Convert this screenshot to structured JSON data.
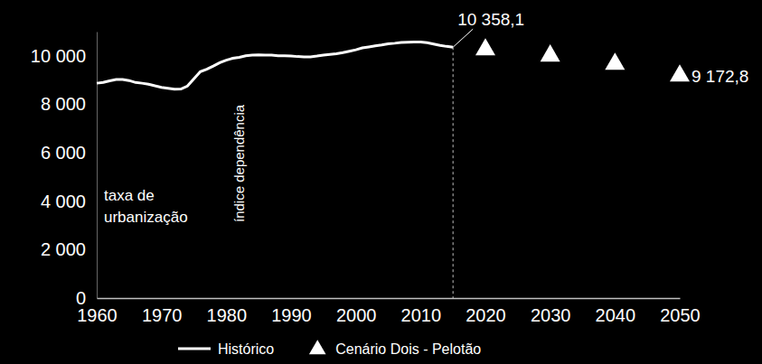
{
  "chart_data": {
    "type": "line",
    "xlim": [
      1960,
      2050
    ],
    "xticks": [
      1960,
      1970,
      1980,
      1990,
      2000,
      2010,
      2020,
      2030,
      2040,
      2050
    ],
    "ylim": [
      0,
      11000
    ],
    "yticks": [
      0,
      {
        "value": 2000,
        "label": "2 000"
      },
      {
        "value": 4000,
        "label": "4 000"
      },
      {
        "value": 6000,
        "label": "6 000"
      },
      {
        "value": 8000,
        "label": "8 000"
      },
      {
        "value": 10000,
        "label": "10 000"
      }
    ],
    "legend": "bottom",
    "annotations": [
      {
        "lines": [
          "taxa de",
          "urbanização"
        ]
      },
      {
        "lines": [
          "índice dependência"
        ]
      }
    ],
    "series": [
      {
        "name": "Histórico",
        "color": "#ffffff",
        "x": [
          1960,
          1961,
          1962,
          1963,
          1964,
          1965,
          1966,
          1967,
          1968,
          1969,
          1970,
          1971,
          1972,
          1973,
          1974,
          1975,
          1976,
          1977,
          1978,
          1979,
          1980,
          1981,
          1982,
          1983,
          1984,
          1985,
          1986,
          1987,
          1988,
          1989,
          1990,
          1991,
          1992,
          1993,
          1994,
          1995,
          1996,
          1997,
          1998,
          1999,
          2000,
          2001,
          2002,
          2003,
          2004,
          2005,
          2006,
          2007,
          2008,
          2009,
          2010,
          2011,
          2012,
          2013,
          2014,
          2015
        ],
        "values": [
          8870,
          8900,
          8970,
          9020,
          9020,
          8980,
          8900,
          8870,
          8830,
          8760,
          8700,
          8660,
          8620,
          8630,
          8750,
          9050,
          9350,
          9450,
          9580,
          9720,
          9820,
          9900,
          9940,
          10000,
          10030,
          10040,
          10030,
          10030,
          10000,
          10000,
          9990,
          9970,
          9960,
          9960,
          9990,
          10030,
          10060,
          10090,
          10130,
          10190,
          10250,
          10330,
          10370,
          10410,
          10450,
          10500,
          10520,
          10550,
          10560,
          10570,
          10570,
          10540,
          10490,
          10430,
          10390,
          10358.1
        ],
        "value_labels": [
          null,
          null,
          null,
          null,
          null,
          null,
          null,
          null,
          null,
          null,
          null,
          null,
          null,
          null,
          null,
          null,
          null,
          null,
          null,
          null,
          null,
          null,
          null,
          null,
          null,
          null,
          null,
          null,
          null,
          null,
          null,
          null,
          null,
          null,
          null,
          null,
          null,
          null,
          null,
          null,
          null,
          null,
          null,
          null,
          null,
          null,
          null,
          null,
          null,
          null,
          null,
          null,
          null,
          null,
          null,
          "10 358,1"
        ]
      },
      {
        "name": "Cenário Dois - Pelotão",
        "type": "scatter",
        "marker": "triangle",
        "color": "#ffffff",
        "x": [
          2020,
          2030,
          2040,
          2050
        ],
        "values": [
          10260,
          10000,
          9660,
          9172.8
        ],
        "value_labels": [
          null,
          null,
          null,
          "9 172,8"
        ]
      }
    ]
  }
}
